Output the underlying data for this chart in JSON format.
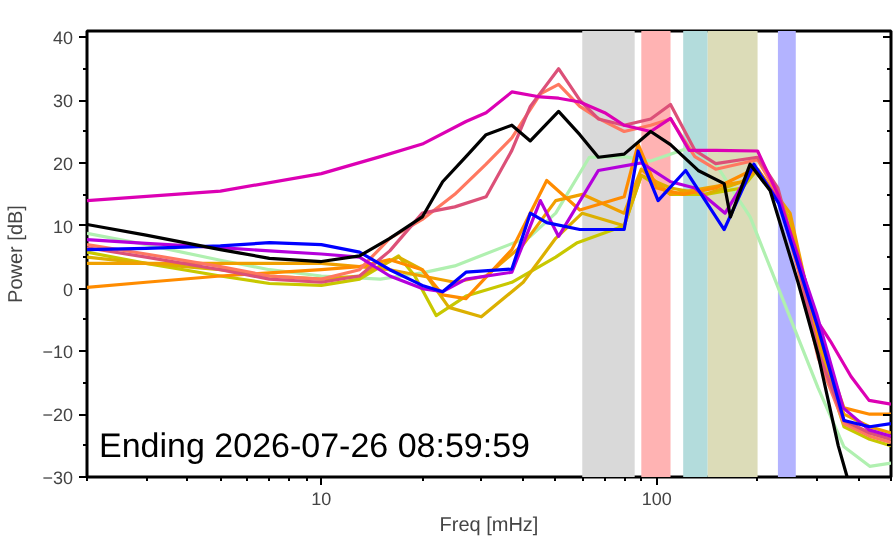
{
  "chart_data": {
    "type": "line",
    "xlabel": "Freq [mHz]",
    "ylabel": "Power [dB]",
    "log": "x",
    "grid": false,
    "marker": "none",
    "line_style": "solid",
    "annotations": [
      "Ending 2026-07-26 08:59:59"
    ],
    "xlim": [
      2,
      500
    ],
    "xticks": [
      10,
      100
    ],
    "ylim": [
      -30,
      41
    ],
    "yticks": [
      {
        "value": -30,
        "label": "−30"
      },
      {
        "value": -20,
        "label": "−20"
      },
      {
        "value": -10,
        "label": "−10"
      },
      0,
      10,
      20,
      30,
      40
    ],
    "bands": [
      {
        "axis": "x",
        "from": 60,
        "to": 86,
        "color": "#d9d9d9"
      },
      {
        "axis": "x",
        "from": 90,
        "to": 110,
        "color": "#ffb3b3"
      },
      {
        "axis": "x",
        "from": 120,
        "to": 142,
        "color": "#b3dcdc"
      },
      {
        "axis": "x",
        "from": 142,
        "to": 200,
        "color": "#dcdcb8"
      },
      {
        "axis": "x",
        "from": 230,
        "to": 260,
        "color": "#b3b3ff"
      }
    ],
    "series": [
      {
        "color": "#b0f0b0",
        "x": [
          2,
          3,
          5,
          7,
          10,
          15,
          20,
          25,
          42,
          50,
          63,
          80,
          96,
          125,
          150,
          190,
          231,
          303,
          362,
          432,
          500
        ],
        "values": [
          8.8,
          7,
          4.5,
          3,
          2,
          1.5,
          2.5,
          3.6,
          8.3,
          12,
          20.9,
          21,
          20.3,
          22.4,
          19.8,
          11.4,
          0,
          -15.8,
          -25.2,
          -28.3,
          -27.8
        ]
      },
      {
        "color": "#c8c800",
        "x": [
          2,
          3,
          5,
          7,
          10,
          13,
          17,
          19,
          22,
          27,
          37,
          50,
          58,
          80,
          90,
          110,
          140,
          180,
          200,
          250,
          303,
          362,
          432,
          500
        ],
        "values": [
          5.8,
          4,
          2,
          0.8,
          0.5,
          1.5,
          5.2,
          2,
          -4.3,
          -1.2,
          1,
          5,
          7.3,
          10,
          18,
          15,
          15,
          16,
          19,
          11,
          -9,
          -22,
          -24,
          -25
        ]
      },
      {
        "color": "#dcb000",
        "x": [
          2,
          3,
          5,
          7,
          10,
          13,
          17,
          20,
          24,
          30,
          40,
          50,
          60,
          80,
          90,
          110,
          140,
          180,
          200,
          250,
          303,
          362,
          432,
          500
        ],
        "values": [
          5,
          4,
          3,
          2,
          1.5,
          2,
          5,
          3,
          -3,
          -4.5,
          1,
          8,
          12,
          10,
          18,
          16,
          15,
          17,
          19,
          11,
          -8,
          -21,
          -23,
          -24
        ]
      },
      {
        "color": "#f0a000",
        "x": [
          2,
          3,
          5,
          7,
          10,
          13,
          16,
          20,
          25,
          31,
          40,
          50,
          60,
          80,
          90,
          110,
          140,
          180,
          200,
          250,
          303,
          362,
          432,
          500
        ],
        "values": [
          4,
          4,
          4,
          4,
          4,
          3.5,
          3,
          2,
          1,
          2,
          7,
          14,
          15,
          12,
          19,
          15,
          16,
          17,
          19,
          12,
          -8,
          -20,
          -22,
          -23
        ]
      },
      {
        "color": "#ff8c00",
        "x": [
          2,
          3,
          5,
          7,
          10,
          13,
          16,
          20,
          23,
          27,
          37,
          47,
          59,
          80,
          88,
          100,
          120,
          150,
          195,
          231,
          303,
          362,
          432,
          500
        ],
        "values": [
          0.2,
          1,
          2,
          2.5,
          3,
          3.5,
          4.6,
          3,
          -1,
          -1.6,
          6.2,
          17.2,
          12.5,
          14.6,
          23,
          16,
          15,
          16,
          19,
          14,
          -7,
          -19,
          -20,
          -20
        ]
      },
      {
        "color": "#ff7860",
        "x": [
          2,
          3,
          5,
          7,
          10,
          13,
          16,
          20,
          25,
          31,
          37,
          45,
          51,
          59,
          67,
          80,
          96,
          110,
          130,
          150,
          200,
          230,
          264,
          303,
          362,
          432,
          500
        ],
        "values": [
          7,
          5.5,
          3.5,
          2,
          1.5,
          3,
          8,
          11,
          15,
          19.8,
          24,
          31,
          32.5,
          29,
          27.1,
          25,
          26,
          27,
          21,
          19,
          20.5,
          15,
          3,
          -11,
          -21.5,
          -23.5,
          -24.5
        ]
      },
      {
        "color": "#dc5078",
        "x": [
          2,
          3,
          5,
          7,
          10,
          13,
          16,
          20,
          25,
          31,
          37,
          42,
          51,
          59,
          67,
          80,
          96,
          110,
          130,
          150,
          200,
          230,
          264,
          303,
          362,
          432,
          500
        ],
        "values": [
          6.5,
          5,
          3,
          1.5,
          1,
          2,
          6,
          12,
          13,
          14.6,
          22,
          29,
          35,
          30,
          27,
          26,
          27,
          29.3,
          22,
          19.9,
          20.9,
          16,
          4,
          -10,
          -21,
          -23,
          -24
        ]
      },
      {
        "color": "#dc00b4",
        "x": [
          2,
          5,
          10,
          15,
          20,
          27,
          31,
          37,
          45,
          51,
          59,
          70,
          80,
          96,
          110,
          125,
          150,
          200,
          230,
          264,
          300,
          330,
          380,
          430,
          500
        ],
        "values": [
          14,
          15.5,
          18.3,
          21,
          23,
          26.6,
          28,
          31.3,
          30.5,
          30.3,
          29.7,
          28,
          26,
          25,
          27.1,
          22,
          22,
          21.9,
          15,
          5.2,
          -5,
          -8.4,
          -14,
          -17.8,
          -18.4
        ]
      },
      {
        "color": "#b400dc",
        "x": [
          2,
          3,
          5,
          7,
          10,
          13,
          16,
          20,
          23,
          27,
          37,
          45,
          51,
          67,
          90,
          110,
          130,
          160,
          195,
          231,
          300,
          360,
          430,
          500
        ],
        "values": [
          7.8,
          7.2,
          6.5,
          6,
          5.5,
          5,
          2,
          0,
          -0.5,
          1.5,
          2.6,
          14,
          8.3,
          18.8,
          20,
          17,
          16,
          12,
          19.5,
          14,
          -4,
          -19,
          -22.5,
          -23.5
        ]
      },
      {
        "color": "#0000ff",
        "x": [
          2,
          3,
          5,
          7,
          10,
          13,
          16,
          20,
          23,
          27,
          37,
          42,
          47,
          59,
          80,
          88,
          101,
          122,
          159,
          195,
          231,
          303,
          362,
          432,
          500
        ],
        "values": [
          6.2,
          6.4,
          6.8,
          7.3,
          7,
          5.8,
          3,
          0.5,
          -0.5,
          2.6,
          3.1,
          12,
          10.5,
          9.4,
          9.4,
          21.9,
          14,
          18.8,
          9.4,
          19.8,
          13.6,
          -6.3,
          -21,
          -22,
          -21.5
        ]
      },
      {
        "color": "#000000",
        "x": [
          2,
          3,
          5,
          7,
          10,
          13,
          16,
          20,
          23,
          27,
          31,
          37,
          42,
          51,
          59,
          67,
          80,
          96,
          110,
          133,
          159,
          166,
          190,
          218,
          264,
          303,
          348,
          370
        ],
        "values": [
          10.2,
          8.5,
          6.2,
          4.8,
          4.3,
          5.2,
          8,
          11.4,
          17,
          21,
          24.5,
          26,
          23.5,
          28.2,
          24.5,
          20.9,
          21.4,
          25,
          22.9,
          18.8,
          16.7,
          11.4,
          19.8,
          15.6,
          1,
          -10.5,
          -25,
          -30
        ]
      }
    ]
  }
}
